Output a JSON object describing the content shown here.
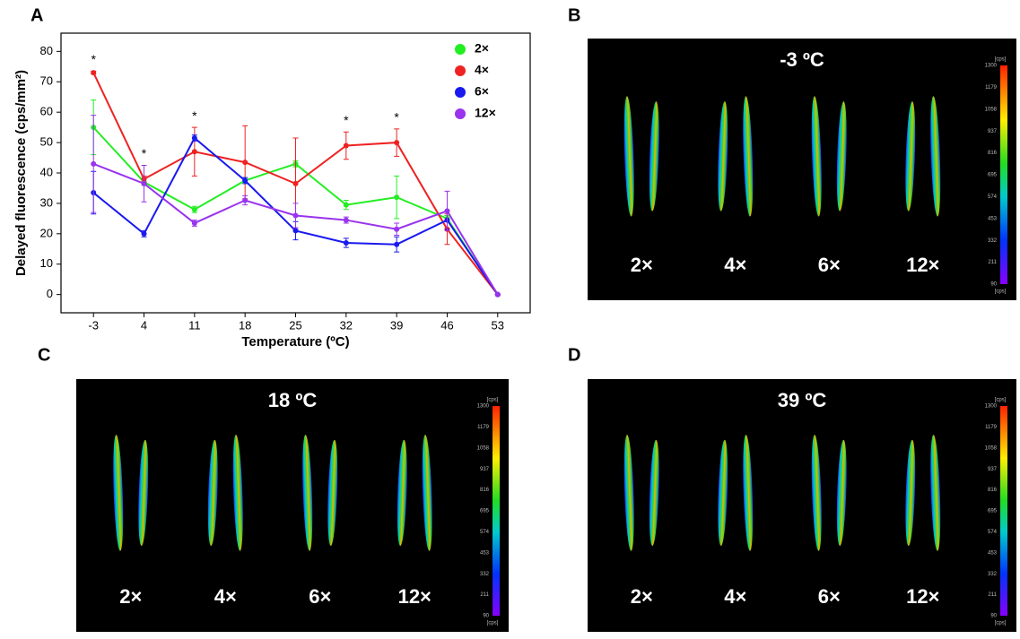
{
  "chart_data": {
    "type": "line",
    "panel": "A",
    "xlabel": "Temperature (ºC)",
    "ylabel": "Delayed fluorescence (cps/mm²)",
    "x": [
      -3,
      4,
      11,
      18,
      25,
      32,
      39,
      46,
      53
    ],
    "xlim": [
      -7.5,
      57.5
    ],
    "xticks": [
      -3,
      4,
      11,
      18,
      25,
      32,
      39,
      46,
      53
    ],
    "ylim": [
      -6,
      86
    ],
    "yticks": [
      0,
      10,
      20,
      30,
      40,
      50,
      60,
      70,
      80
    ],
    "legend": "top-right",
    "series": [
      {
        "name": "2×",
        "color": "#22ee22",
        "values": [
          55,
          37,
          28,
          37.5,
          43,
          29.5,
          32,
          25,
          0
        ],
        "errors": [
          9,
          1,
          1,
          1,
          1,
          1.5,
          7,
          1,
          0
        ]
      },
      {
        "name": "4×",
        "color": "#ee2222",
        "values": [
          73,
          38,
          47,
          43.5,
          36.5,
          49,
          50,
          21.5,
          0
        ],
        "errors": [
          0.5,
          1,
          8,
          12,
          15,
          4.5,
          4.5,
          5,
          0
        ]
      },
      {
        "name": "6×",
        "color": "#1a1aee",
        "values": [
          33.5,
          20,
          51.5,
          37.5,
          21,
          17,
          16.5,
          24.5,
          0
        ],
        "errors": [
          7,
          1,
          1,
          1,
          3,
          1.5,
          2.5,
          3,
          0
        ]
      },
      {
        "name": "12×",
        "color": "#9933ee",
        "values": [
          43,
          36.5,
          23.5,
          31,
          26,
          24.5,
          21.5,
          27.5,
          0
        ],
        "errors": [
          16,
          6,
          1,
          1.5,
          4,
          1,
          2,
          6.5,
          0
        ]
      }
    ],
    "annotations": [
      {
        "x": -3,
        "text": "*"
      },
      {
        "x": 4,
        "text": "*"
      },
      {
        "x": 11,
        "text": "*"
      },
      {
        "x": 32,
        "text": "*"
      },
      {
        "x": 39,
        "text": "*"
      }
    ]
  },
  "images": [
    {
      "panel": "B",
      "title": "-3 ºC",
      "labels": [
        "2×",
        "4×",
        "6×",
        "12×"
      ]
    },
    {
      "panel": "C",
      "title": "18 ºC",
      "labels": [
        "2×",
        "4×",
        "6×",
        "12×"
      ]
    },
    {
      "panel": "D",
      "title": "39 ºC",
      "labels": [
        "2×",
        "4×",
        "6×",
        "12×"
      ]
    }
  ],
  "colorbar": {
    "unit": "[cps]",
    "ticks": [
      1300,
      1179,
      1058,
      937,
      816,
      695,
      574,
      453,
      332,
      211,
      90
    ]
  }
}
